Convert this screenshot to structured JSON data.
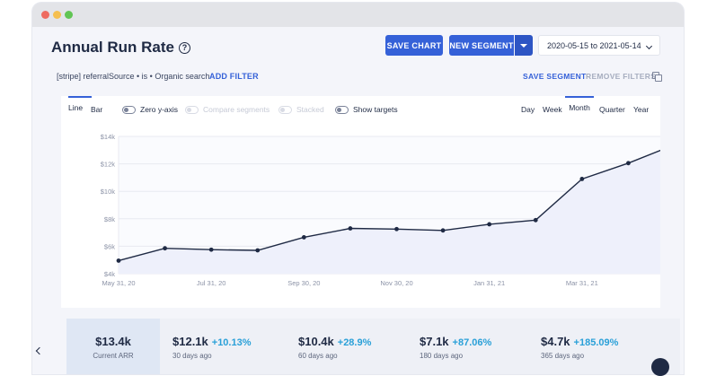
{
  "header": {
    "title": "Annual Run Rate",
    "help_symbol": "?",
    "save_chart_label": "SAVE CHART",
    "new_segment_label": "NEW SEGMENT",
    "date_range": "2020-05-15 to 2021-05-14"
  },
  "filters": {
    "segment_text": "[stripe] referralSource • is • Organic search",
    "add_filter_label": "ADD FILTER",
    "save_segment_label": "SAVE SEGMENT",
    "remove_filters_label": "REMOVE FILTERS"
  },
  "chart_controls": {
    "line_label": "Line",
    "bar_label": "Bar",
    "zero_axis_label": "Zero y-axis",
    "compare_label": "Compare segments",
    "stacked_label": "Stacked",
    "targets_label": "Show targets",
    "day_label": "Day",
    "week_label": "Week",
    "month_label": "Month",
    "quarter_label": "Quarter",
    "year_label": "Year"
  },
  "chart_data": {
    "type": "area",
    "title": "",
    "xlabel": "",
    "ylabel": "",
    "y_ticks": [
      "$4k",
      "$6k",
      "$8k",
      "$10k",
      "$12k",
      "$14k"
    ],
    "ylim": [
      4000,
      14000
    ],
    "x_tick_labels": [
      "May 31, 20",
      "Jul 31, 20",
      "Sep 30, 20",
      "Nov 30, 20",
      "Jan 31, 21",
      "Mar 31, 21"
    ],
    "x_tick_positions": [
      0,
      2,
      4,
      6,
      8,
      10
    ],
    "x": [
      "2020-05-31",
      "2020-06-30",
      "2020-07-31",
      "2020-08-31",
      "2020-09-30",
      "2020-10-31",
      "2020-11-30",
      "2020-12-31",
      "2021-01-31",
      "2021-02-28",
      "2021-03-31",
      "2021-04-30",
      "2021-05-14"
    ],
    "values": [
      4950,
      5850,
      5750,
      5700,
      6650,
      7300,
      7250,
      7150,
      7600,
      7900,
      10900,
      12050,
      13400
    ],
    "grid": true,
    "line_color": "#1f2a44",
    "fill_color": "#eef0fb"
  },
  "stats": [
    {
      "value": "$13.4k",
      "change": "",
      "label": "Current ARR"
    },
    {
      "value": "$12.1k",
      "change": "+10.13%",
      "label": "30 days ago"
    },
    {
      "value": "$10.4k",
      "change": "+28.9%",
      "label": "60 days ago"
    },
    {
      "value": "$7.1k",
      "change": "+87.06%",
      "label": "180 days ago"
    },
    {
      "value": "$4.7k",
      "change": "+185.09%",
      "label": "365 days ago"
    }
  ],
  "colors": {
    "accent": "#3561d8",
    "positive": "#2aa0d8"
  }
}
